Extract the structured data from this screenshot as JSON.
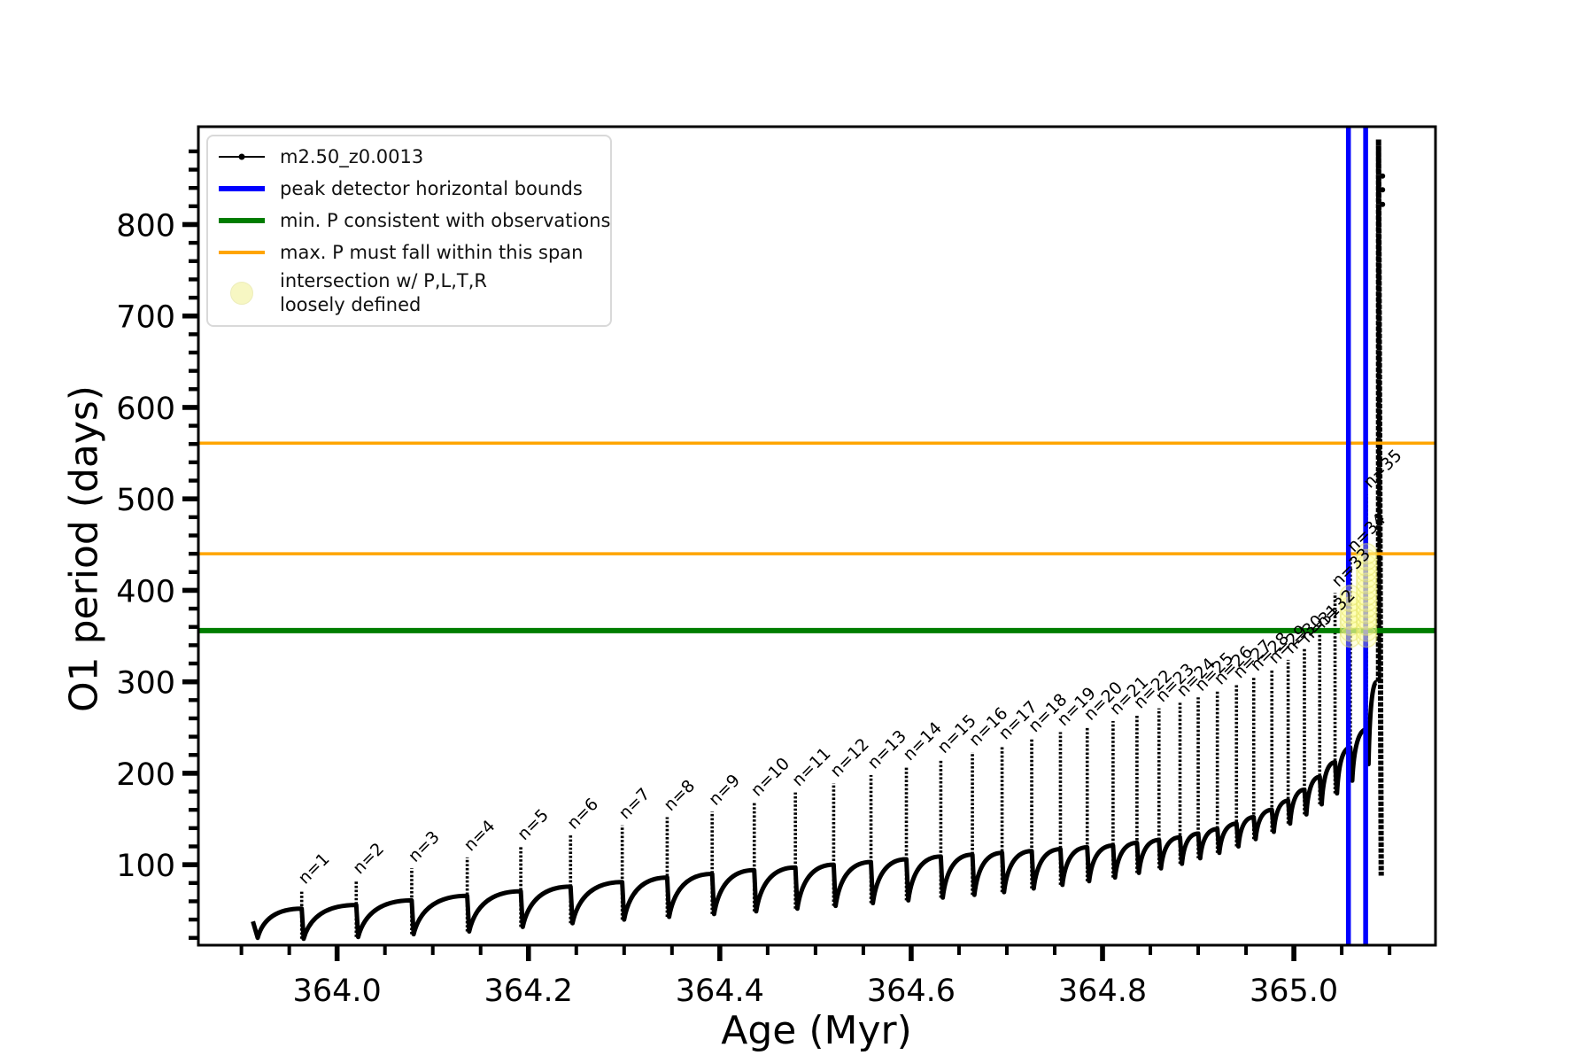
{
  "colors": {
    "series": "#000000",
    "blue": "#0000ff",
    "green": "#007d00",
    "orange": "#ffa500",
    "yellow_fill": "#ffff99",
    "frame": "#000000"
  },
  "legend": {
    "items": [
      {
        "label": "m2.50_z0.0013",
        "swatch": "line-with-dot",
        "color": "#000000"
      },
      {
        "label": "peak detector horizontal bounds",
        "swatch": "thick-line",
        "color": "#0000ff"
      },
      {
        "label": "min. P consistent with observations",
        "swatch": "thick-line",
        "color": "#007d00"
      },
      {
        "label": "max. P must fall within this span",
        "swatch": "thin-line",
        "color": "#ffa500"
      },
      {
        "label": "intersection w/ P,L,T,R",
        "label2": "loosely defined",
        "swatch": "circle",
        "color": "#ffff99"
      }
    ]
  },
  "chart_data": {
    "type": "line",
    "title": "",
    "xlabel": "Age (Myr)",
    "ylabel": "O1 period (days)",
    "xlim": [
      363.855,
      365.148
    ],
    "ylim": [
      12,
      907
    ],
    "grid": false,
    "legend_position": "upper left",
    "x_major_ticks": [
      364.0,
      364.2,
      364.4,
      364.6,
      364.8,
      365.0
    ],
    "x_tick_labels": [
      "364.0",
      "364.2",
      "364.4",
      "364.6",
      "364.8",
      "365.0"
    ],
    "x_minor_step": 0.05,
    "y_major_ticks": [
      100,
      200,
      300,
      400,
      500,
      600,
      700,
      800
    ],
    "y_tick_labels": [
      "100",
      "200",
      "300",
      "400",
      "500",
      "600",
      "700",
      "800"
    ],
    "y_minor_step": 20,
    "series_name": "m2.50_z0.0013",
    "start_point": {
      "age": 363.912,
      "value": 38,
      "dip_age": 363.917,
      "dip_value": 20
    },
    "spikes": [
      {
        "label": "n=1",
        "age": 363.963,
        "peak": 72,
        "base": 52,
        "dip": 19
      },
      {
        "label": "n=2",
        "age": 364.02,
        "peak": 83,
        "base": 56,
        "dip": 21
      },
      {
        "label": "n=3",
        "age": 364.078,
        "peak": 96,
        "base": 61,
        "dip": 24
      },
      {
        "label": "n=4",
        "age": 364.136,
        "peak": 108,
        "base": 66,
        "dip": 27
      },
      {
        "label": "n=5",
        "age": 364.192,
        "peak": 120,
        "base": 71,
        "dip": 32
      },
      {
        "label": "n=6",
        "age": 364.244,
        "peak": 132,
        "base": 76,
        "dip": 36
      },
      {
        "label": "n=7",
        "age": 364.298,
        "peak": 143,
        "base": 81,
        "dip": 40
      },
      {
        "label": "n=8",
        "age": 364.345,
        "peak": 152,
        "base": 86,
        "dip": 43
      },
      {
        "label": "n=9",
        "age": 364.392,
        "peak": 158,
        "base": 90,
        "dip": 46
      },
      {
        "label": "n=10",
        "age": 364.436,
        "peak": 168,
        "base": 94,
        "dip": 49
      },
      {
        "label": "n=11",
        "age": 364.479,
        "peak": 179,
        "base": 97,
        "dip": 52
      },
      {
        "label": "n=12",
        "age": 364.519,
        "peak": 189,
        "base": 100,
        "dip": 55
      },
      {
        "label": "n=13",
        "age": 364.558,
        "peak": 198,
        "base": 103,
        "dip": 58
      },
      {
        "label": "n=14",
        "age": 364.595,
        "peak": 207,
        "base": 106,
        "dip": 61
      },
      {
        "label": "n=15",
        "age": 364.631,
        "peak": 215,
        "base": 109,
        "dip": 64
      },
      {
        "label": "n=16",
        "age": 364.664,
        "peak": 223,
        "base": 111,
        "dip": 67
      },
      {
        "label": "n=17",
        "age": 364.695,
        "peak": 230,
        "base": 113,
        "dip": 70
      },
      {
        "label": "n=18",
        "age": 364.726,
        "peak": 238,
        "base": 115,
        "dip": 74
      },
      {
        "label": "n=19",
        "age": 364.756,
        "peak": 245,
        "base": 117,
        "dip": 78
      },
      {
        "label": "n=20",
        "age": 364.784,
        "peak": 251,
        "base": 119,
        "dip": 82
      },
      {
        "label": "n=21",
        "age": 364.811,
        "peak": 257,
        "base": 121,
        "dip": 86
      },
      {
        "label": "n=22",
        "age": 364.836,
        "peak": 264,
        "base": 124,
        "dip": 91
      },
      {
        "label": "n=23",
        "age": 364.859,
        "peak": 271,
        "base": 127,
        "dip": 96
      },
      {
        "label": "n=24",
        "age": 364.881,
        "peak": 277,
        "base": 130,
        "dip": 101
      },
      {
        "label": "n=25",
        "age": 364.9,
        "peak": 283,
        "base": 134,
        "dip": 107
      },
      {
        "label": "n=26",
        "age": 364.92,
        "peak": 290,
        "base": 139,
        "dip": 113
      },
      {
        "label": "n=27",
        "age": 364.94,
        "peak": 297,
        "base": 145,
        "dip": 120
      },
      {
        "label": "n=28",
        "age": 364.958,
        "peak": 305,
        "base": 152,
        "dip": 128
      },
      {
        "label": "n=29",
        "age": 364.977,
        "peak": 313,
        "base": 160,
        "dip": 136
      },
      {
        "label": "n=30",
        "age": 364.994,
        "peak": 324,
        "base": 170,
        "dip": 145
      },
      {
        "label": "n=31",
        "age": 365.011,
        "peak": 336,
        "base": 182,
        "dip": 155
      },
      {
        "label": "n=32",
        "age": 365.027,
        "peak": 352,
        "base": 196,
        "dip": 166
      },
      {
        "label": "n=33",
        "age": 365.043,
        "peak": 397,
        "base": 212,
        "dip": 178
      },
      {
        "label": "n=34",
        "age": 365.059,
        "peak": 435,
        "base": 228,
        "dip": 192
      },
      {
        "label": "n=35",
        "age": 365.076,
        "peak": 505,
        "base": 248,
        "dip": 210
      }
    ],
    "final_surge": {
      "base_age": 365.0865,
      "base_value": 300,
      "peak_age": 365.0885,
      "peak_value": 893,
      "end_age": 365.0905,
      "end_value": 88
    },
    "hlines": [
      {
        "name": "max-P-span-upper",
        "value": 561,
        "color": "#ffa500",
        "width": 3.5
      },
      {
        "name": "max-P-span-lower",
        "value": 440,
        "color": "#ffa500",
        "width": 3.5
      },
      {
        "name": "min-P-observed",
        "value": 356,
        "color": "#007d00",
        "width": 6
      }
    ],
    "vlines": [
      {
        "name": "peak-detector-bound-1",
        "age": 365.057,
        "color": "#0000ff",
        "width": 5.5
      },
      {
        "name": "peak-detector-bound-2",
        "age": 365.075,
        "color": "#0000ff",
        "width": 5.5
      }
    ],
    "yellow_markers": [
      {
        "age": 365.059,
        "from": 349,
        "to": 398
      },
      {
        "age": 365.076,
        "from": 349,
        "to": 440
      }
    ]
  }
}
